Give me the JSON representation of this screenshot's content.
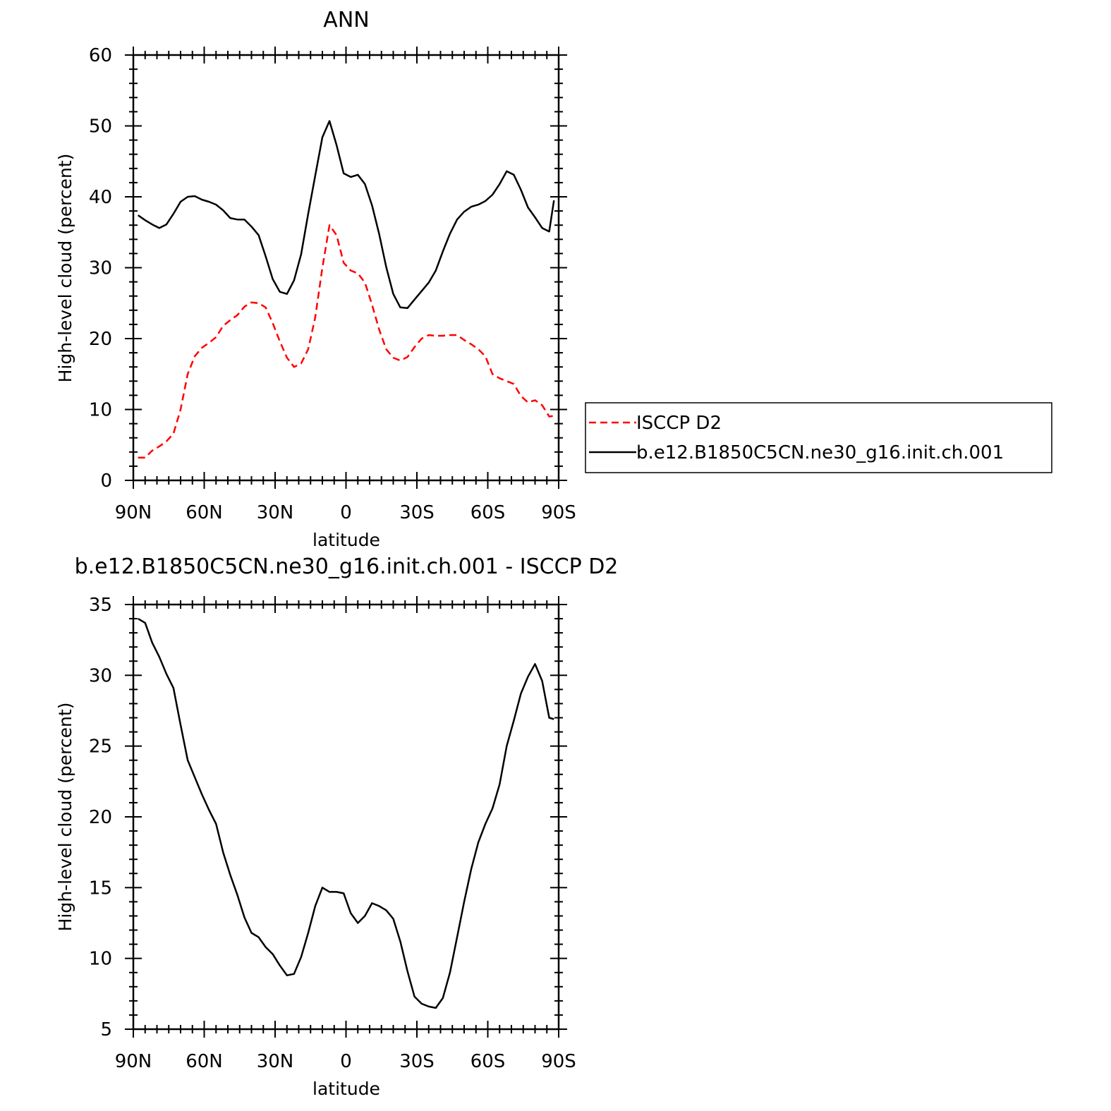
{
  "chart_data": [
    {
      "type": "line",
      "title": "ANN",
      "xlabel": "latitude",
      "ylabel": "High-level cloud (percent)",
      "ylim": [
        0,
        60
      ],
      "xlim": [
        -90,
        90
      ],
      "x_ticks": [
        {
          "value": -90,
          "label": "90N"
        },
        {
          "value": -60,
          "label": "60N"
        },
        {
          "value": -30,
          "label": "30N"
        },
        {
          "value": 0,
          "label": "0"
        },
        {
          "value": 30,
          "label": "30S"
        },
        {
          "value": 60,
          "label": "60S"
        },
        {
          "value": 90,
          "label": "90S"
        }
      ],
      "y_ticks": [
        0,
        10,
        20,
        30,
        40,
        50,
        60
      ],
      "legend_position": "right",
      "x": [
        -88,
        -85,
        -82,
        -79,
        -76,
        -73,
        -70,
        -67,
        -64,
        -61,
        -58,
        -55,
        -52,
        -49,
        -46,
        -43,
        -40,
        -37,
        -34,
        -31,
        -28,
        -25,
        -22,
        -19,
        -16,
        -13,
        -10,
        -7,
        -4,
        -1,
        2,
        5,
        8,
        11,
        14,
        17,
        20,
        23,
        26,
        29,
        32,
        35,
        38,
        41,
        44,
        47,
        50,
        53,
        56,
        59,
        62,
        65,
        68,
        71,
        74,
        77,
        80,
        83,
        86,
        88
      ],
      "series": [
        {
          "name": "ISCCP D2",
          "color": "#ff0000",
          "dash": true,
          "values": [
            3.2,
            3.2,
            4.2,
            4.8,
            5.5,
            6.6,
            10,
            15,
            17.5,
            18.7,
            19.4,
            20.2,
            21.8,
            22.6,
            23.3,
            24.5,
            25.1,
            25.0,
            24.4,
            22.2,
            19.6,
            17.3,
            16.0,
            16.5,
            18.5,
            23.0,
            30.0,
            36.0,
            34.6,
            30.7,
            29.6,
            29.2,
            27.9,
            24.8,
            21.3,
            18.5,
            17.3,
            16.9,
            17.4,
            18.8,
            20.0,
            20.5,
            20.4,
            20.4,
            20.5,
            20.5,
            19.8,
            19.2,
            18.5,
            17.5,
            15.0,
            14.4,
            14.0,
            13.6,
            11.9,
            11.0,
            11.3,
            10.6,
            9.0,
            9.1
          ]
        },
        {
          "name": "b.e12.B1850C5CN.ne30_g16.init.ch.001",
          "color": "#000000",
          "dash": false,
          "values": [
            37.4,
            36.7,
            36.1,
            35.6,
            36.1,
            37.6,
            39.3,
            40.0,
            40.1,
            39.6,
            39.3,
            38.9,
            38.1,
            37.0,
            36.8,
            36.8,
            35.8,
            34.6,
            31.6,
            28.4,
            26.6,
            26.3,
            28.2,
            31.9,
            37.6,
            43.0,
            48.4,
            50.7,
            47.3,
            43.3,
            42.8,
            43.1,
            41.8,
            38.8,
            34.8,
            30.1,
            26.3,
            24.4,
            24.3,
            25.5,
            26.7,
            27.9,
            29.6,
            32.3,
            34.8,
            36.8,
            37.9,
            38.6,
            38.9,
            39.4,
            40.3,
            41.8,
            43.6,
            43.1,
            41.0,
            38.5,
            37.1,
            35.6,
            35.1,
            39.5
          ]
        }
      ]
    },
    {
      "type": "line",
      "title": "b.e12.B1850C5CN.ne30_g16.init.ch.001 - ISCCP D2",
      "xlabel": "latitude",
      "ylabel": "High-level cloud (percent)",
      "ylim": [
        5,
        35
      ],
      "xlim": [
        -90,
        90
      ],
      "x_ticks": [
        {
          "value": -90,
          "label": "90N"
        },
        {
          "value": -60,
          "label": "60N"
        },
        {
          "value": -30,
          "label": "30N"
        },
        {
          "value": 0,
          "label": "0"
        },
        {
          "value": 30,
          "label": "30S"
        },
        {
          "value": 60,
          "label": "60S"
        },
        {
          "value": 90,
          "label": "90S"
        }
      ],
      "y_ticks": [
        5,
        10,
        15,
        20,
        25,
        30,
        35
      ],
      "x": [
        -88,
        -85,
        -82,
        -79,
        -76,
        -73,
        -70,
        -67,
        -64,
        -61,
        -58,
        -55,
        -52,
        -49,
        -46,
        -43,
        -40,
        -37,
        -34,
        -31,
        -28,
        -25,
        -22,
        -19,
        -16,
        -13,
        -10,
        -7,
        -4,
        -1,
        2,
        5,
        8,
        11,
        14,
        17,
        20,
        23,
        26,
        29,
        32,
        35,
        38,
        41,
        44,
        47,
        50,
        53,
        56,
        59,
        62,
        65,
        68,
        71,
        74,
        77,
        80,
        83,
        86,
        88
      ],
      "series": [
        {
          "color": "#000000",
          "dash": false,
          "values": [
            34.0,
            33.7,
            32.3,
            31.3,
            30.1,
            29.1,
            26.5,
            24.0,
            22.8,
            21.6,
            20.5,
            19.5,
            17.5,
            15.9,
            14.5,
            12.9,
            11.8,
            11.5,
            10.8,
            10.3,
            9.5,
            8.8,
            8.9,
            10.1,
            11.8,
            13.7,
            15.0,
            14.7,
            14.7,
            14.6,
            13.2,
            12.5,
            13.0,
            13.9,
            13.7,
            13.4,
            12.8,
            11.2,
            9.1,
            7.3,
            6.8,
            6.6,
            6.5,
            7.2,
            9.0,
            11.5,
            14.0,
            16.3,
            18.2,
            19.5,
            20.6,
            22.3,
            25.0,
            26.8,
            28.7,
            29.9,
            30.8,
            29.6,
            27.0,
            26.9
          ]
        }
      ]
    }
  ]
}
